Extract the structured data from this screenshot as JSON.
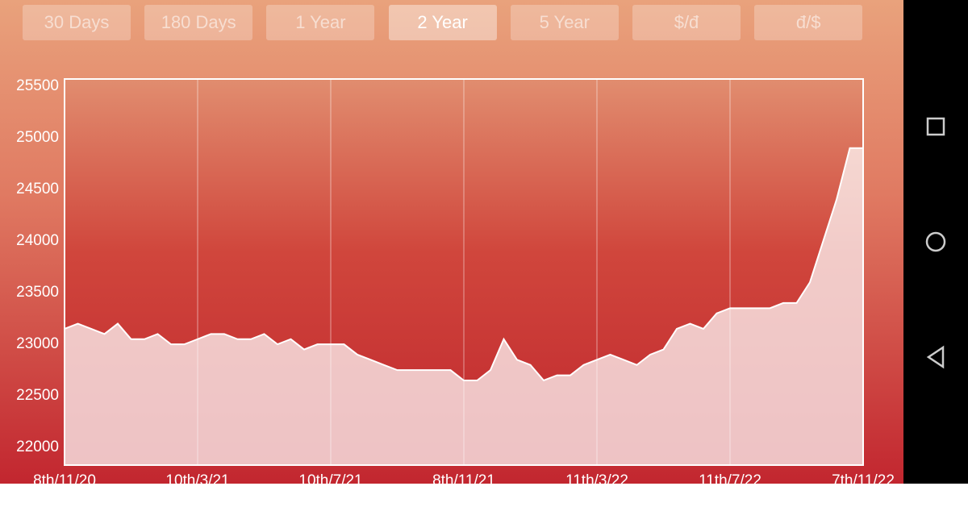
{
  "buttons": [
    "30 Days",
    "180 Days",
    "1 Year",
    "2 Year",
    "5 Year",
    "$/đ",
    "đ/$"
  ],
  "active_button": 3,
  "chart_data": {
    "type": "area",
    "categories": [
      "8th/11/20",
      null,
      null,
      null,
      null,
      null,
      null,
      null,
      null,
      null,
      "10th/3/21",
      null,
      null,
      null,
      null,
      null,
      null,
      null,
      null,
      null,
      "10th/7/21",
      null,
      null,
      null,
      null,
      null,
      null,
      null,
      null,
      null,
      "8th/11/21",
      null,
      null,
      null,
      null,
      null,
      null,
      null,
      null,
      null,
      "11th/3/22",
      null,
      null,
      null,
      null,
      null,
      null,
      null,
      null,
      null,
      "11th/7/22",
      null,
      null,
      null,
      null,
      null,
      null,
      null,
      null,
      null,
      "7th/11/22"
    ],
    "values": [
      23150,
      23200,
      23150,
      23100,
      23200,
      23050,
      23050,
      23100,
      23000,
      23000,
      23050,
      23100,
      23100,
      23050,
      23050,
      23100,
      23000,
      23050,
      22950,
      23000,
      23000,
      23000,
      22900,
      22850,
      22800,
      22750,
      22750,
      22750,
      22750,
      22750,
      22650,
      22650,
      22750,
      23050,
      22850,
      22800,
      22650,
      22700,
      22700,
      22800,
      22850,
      22900,
      22850,
      22800,
      22900,
      22950,
      23150,
      23200,
      23150,
      23300,
      23350,
      23350,
      23350,
      23350,
      23400,
      23400,
      23600,
      24000,
      24400,
      24900,
      24900
    ],
    "color": "#ffffff",
    "ylim": [
      21830,
      25570
    ],
    "yticks": [
      22000,
      22500,
      23000,
      23500,
      24000,
      24500,
      25000,
      25500
    ],
    "grid": true
  }
}
